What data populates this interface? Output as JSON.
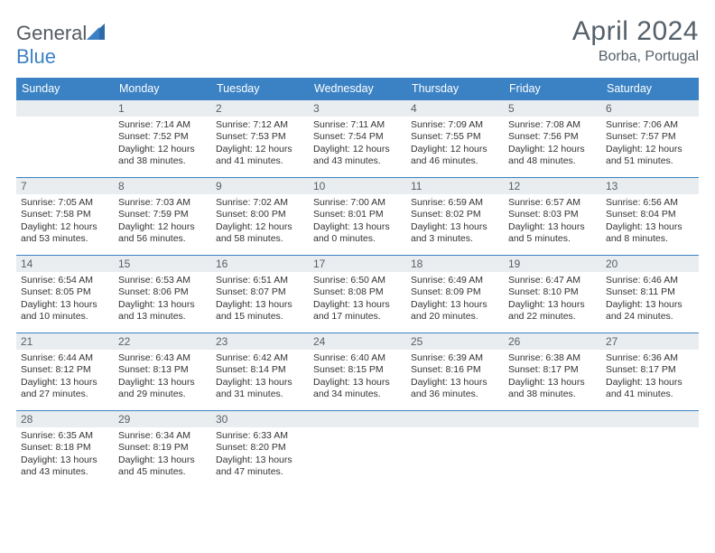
{
  "logo": {
    "text_general": "General",
    "text_blue": "Blue"
  },
  "title": "April 2024",
  "location": "Borba, Portugal",
  "headers": [
    "Sunday",
    "Monday",
    "Tuesday",
    "Wednesday",
    "Thursday",
    "Friday",
    "Saturday"
  ],
  "colors": {
    "brand_blue": "#3b82c4",
    "header_bg": "#3b82c4",
    "header_text": "#ffffff",
    "daybar_bg": "#e9edf0",
    "text": "#333333",
    "logo_gray": "#555b61"
  },
  "weeks": [
    [
      {
        "n": "",
        "lines": []
      },
      {
        "n": "1",
        "lines": [
          "Sunrise: 7:14 AM",
          "Sunset: 7:52 PM",
          "Daylight: 12 hours",
          "and 38 minutes."
        ]
      },
      {
        "n": "2",
        "lines": [
          "Sunrise: 7:12 AM",
          "Sunset: 7:53 PM",
          "Daylight: 12 hours",
          "and 41 minutes."
        ]
      },
      {
        "n": "3",
        "lines": [
          "Sunrise: 7:11 AM",
          "Sunset: 7:54 PM",
          "Daylight: 12 hours",
          "and 43 minutes."
        ]
      },
      {
        "n": "4",
        "lines": [
          "Sunrise: 7:09 AM",
          "Sunset: 7:55 PM",
          "Daylight: 12 hours",
          "and 46 minutes."
        ]
      },
      {
        "n": "5",
        "lines": [
          "Sunrise: 7:08 AM",
          "Sunset: 7:56 PM",
          "Daylight: 12 hours",
          "and 48 minutes."
        ]
      },
      {
        "n": "6",
        "lines": [
          "Sunrise: 7:06 AM",
          "Sunset: 7:57 PM",
          "Daylight: 12 hours",
          "and 51 minutes."
        ]
      }
    ],
    [
      {
        "n": "7",
        "lines": [
          "Sunrise: 7:05 AM",
          "Sunset: 7:58 PM",
          "Daylight: 12 hours",
          "and 53 minutes."
        ]
      },
      {
        "n": "8",
        "lines": [
          "Sunrise: 7:03 AM",
          "Sunset: 7:59 PM",
          "Daylight: 12 hours",
          "and 56 minutes."
        ]
      },
      {
        "n": "9",
        "lines": [
          "Sunrise: 7:02 AM",
          "Sunset: 8:00 PM",
          "Daylight: 12 hours",
          "and 58 minutes."
        ]
      },
      {
        "n": "10",
        "lines": [
          "Sunrise: 7:00 AM",
          "Sunset: 8:01 PM",
          "Daylight: 13 hours",
          "and 0 minutes."
        ]
      },
      {
        "n": "11",
        "lines": [
          "Sunrise: 6:59 AM",
          "Sunset: 8:02 PM",
          "Daylight: 13 hours",
          "and 3 minutes."
        ]
      },
      {
        "n": "12",
        "lines": [
          "Sunrise: 6:57 AM",
          "Sunset: 8:03 PM",
          "Daylight: 13 hours",
          "and 5 minutes."
        ]
      },
      {
        "n": "13",
        "lines": [
          "Sunrise: 6:56 AM",
          "Sunset: 8:04 PM",
          "Daylight: 13 hours",
          "and 8 minutes."
        ]
      }
    ],
    [
      {
        "n": "14",
        "lines": [
          "Sunrise: 6:54 AM",
          "Sunset: 8:05 PM",
          "Daylight: 13 hours",
          "and 10 minutes."
        ]
      },
      {
        "n": "15",
        "lines": [
          "Sunrise: 6:53 AM",
          "Sunset: 8:06 PM",
          "Daylight: 13 hours",
          "and 13 minutes."
        ]
      },
      {
        "n": "16",
        "lines": [
          "Sunrise: 6:51 AM",
          "Sunset: 8:07 PM",
          "Daylight: 13 hours",
          "and 15 minutes."
        ]
      },
      {
        "n": "17",
        "lines": [
          "Sunrise: 6:50 AM",
          "Sunset: 8:08 PM",
          "Daylight: 13 hours",
          "and 17 minutes."
        ]
      },
      {
        "n": "18",
        "lines": [
          "Sunrise: 6:49 AM",
          "Sunset: 8:09 PM",
          "Daylight: 13 hours",
          "and 20 minutes."
        ]
      },
      {
        "n": "19",
        "lines": [
          "Sunrise: 6:47 AM",
          "Sunset: 8:10 PM",
          "Daylight: 13 hours",
          "and 22 minutes."
        ]
      },
      {
        "n": "20",
        "lines": [
          "Sunrise: 6:46 AM",
          "Sunset: 8:11 PM",
          "Daylight: 13 hours",
          "and 24 minutes."
        ]
      }
    ],
    [
      {
        "n": "21",
        "lines": [
          "Sunrise: 6:44 AM",
          "Sunset: 8:12 PM",
          "Daylight: 13 hours",
          "and 27 minutes."
        ]
      },
      {
        "n": "22",
        "lines": [
          "Sunrise: 6:43 AM",
          "Sunset: 8:13 PM",
          "Daylight: 13 hours",
          "and 29 minutes."
        ]
      },
      {
        "n": "23",
        "lines": [
          "Sunrise: 6:42 AM",
          "Sunset: 8:14 PM",
          "Daylight: 13 hours",
          "and 31 minutes."
        ]
      },
      {
        "n": "24",
        "lines": [
          "Sunrise: 6:40 AM",
          "Sunset: 8:15 PM",
          "Daylight: 13 hours",
          "and 34 minutes."
        ]
      },
      {
        "n": "25",
        "lines": [
          "Sunrise: 6:39 AM",
          "Sunset: 8:16 PM",
          "Daylight: 13 hours",
          "and 36 minutes."
        ]
      },
      {
        "n": "26",
        "lines": [
          "Sunrise: 6:38 AM",
          "Sunset: 8:17 PM",
          "Daylight: 13 hours",
          "and 38 minutes."
        ]
      },
      {
        "n": "27",
        "lines": [
          "Sunrise: 6:36 AM",
          "Sunset: 8:17 PM",
          "Daylight: 13 hours",
          "and 41 minutes."
        ]
      }
    ],
    [
      {
        "n": "28",
        "lines": [
          "Sunrise: 6:35 AM",
          "Sunset: 8:18 PM",
          "Daylight: 13 hours",
          "and 43 minutes."
        ]
      },
      {
        "n": "29",
        "lines": [
          "Sunrise: 6:34 AM",
          "Sunset: 8:19 PM",
          "Daylight: 13 hours",
          "and 45 minutes."
        ]
      },
      {
        "n": "30",
        "lines": [
          "Sunrise: 6:33 AM",
          "Sunset: 8:20 PM",
          "Daylight: 13 hours",
          "and 47 minutes."
        ]
      },
      {
        "n": "",
        "lines": []
      },
      {
        "n": "",
        "lines": []
      },
      {
        "n": "",
        "lines": []
      },
      {
        "n": "",
        "lines": []
      }
    ]
  ]
}
